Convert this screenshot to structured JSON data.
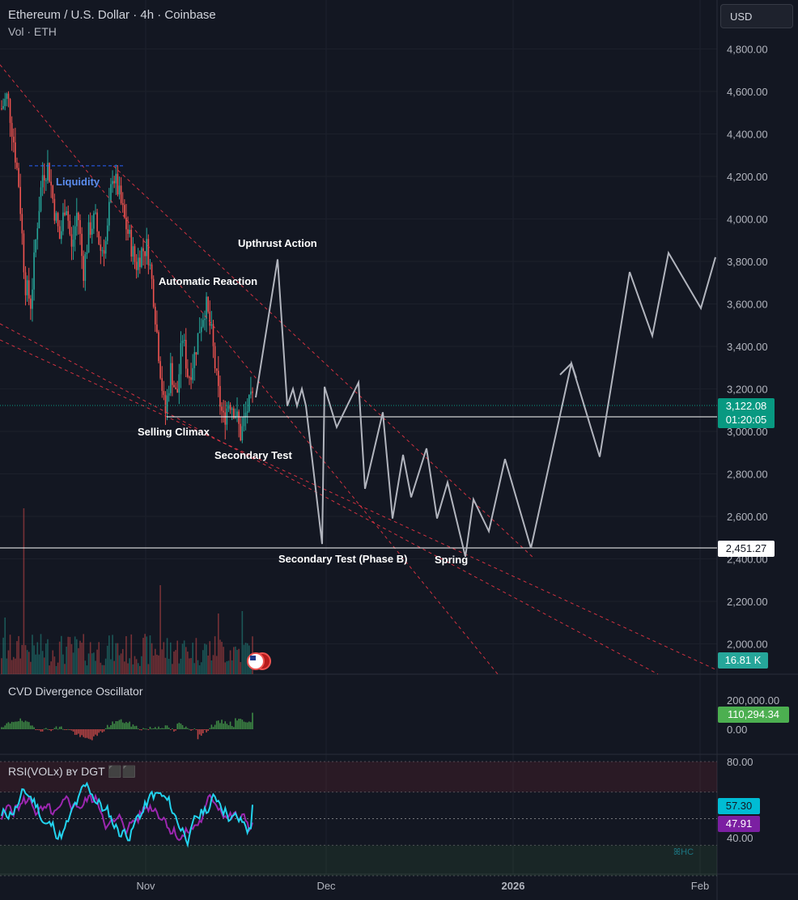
{
  "header": {
    "title": "Ethereum / U.S. Dollar · 4h · Coinbase",
    "volume_label": "Vol · ETH",
    "currency_button": "USD"
  },
  "panes": {
    "cvd_title": "CVD Divergence Oscillator",
    "rsi_title": "RSI(VOLx) ʙʏ DGT ⬛⬛"
  },
  "price_tags": {
    "current_price": "3,122.08",
    "countdown": "01:20:05",
    "support_level": "2,451.27",
    "volume": "16.81 K",
    "cvd_value": "110,294.34",
    "rsi_a": "57.30",
    "rsi_b": "47.91"
  },
  "colors": {
    "background": "#131722",
    "up": "#26a69a",
    "down": "#ef5350",
    "trendline": "#f23645",
    "projection": "#b2b5be",
    "rsi_cyan": "#22d3ee",
    "rsi_purple": "#9c27b0",
    "cvd_tag": "#4caf50",
    "rsi_b_tag": "#7b1fa2",
    "price_tag": "#089981"
  },
  "chart_data": {
    "type": "candlestick",
    "title": "Ethereum / U.S. Dollar · 4h · Coinbase",
    "y_axis": {
      "ticks": [
        "4,800.00",
        "4,600.00",
        "4,400.00",
        "4,200.00",
        "4,000.00",
        "3,800.00",
        "3,600.00",
        "3,400.00",
        "3,200.00",
        "3,000.00",
        "2,800.00",
        "2,600.00",
        "2,400.00",
        "2,200.00",
        "2,000.00"
      ],
      "range": [
        1850,
        4950
      ]
    },
    "x_axis": {
      "ticks": [
        "Nov",
        "Dec",
        "2026",
        "Feb"
      ]
    },
    "price_path": [
      [
        0,
        4520
      ],
      [
        1,
        4580
      ],
      [
        2,
        4380
      ],
      [
        3,
        4150
      ],
      [
        4,
        3700
      ],
      [
        5,
        3600
      ],
      [
        6,
        3950
      ],
      [
        7,
        4210
      ],
      [
        8,
        4250
      ],
      [
        9,
        4050
      ],
      [
        10,
        3900
      ],
      [
        11,
        4100
      ],
      [
        12,
        3850
      ],
      [
        13,
        4050
      ],
      [
        14,
        3750
      ],
      [
        15,
        3950
      ],
      [
        16,
        4000
      ],
      [
        17,
        3850
      ],
      [
        18,
        3900
      ],
      [
        19,
        4220
      ],
      [
        20,
        4130
      ],
      [
        21,
        4000
      ],
      [
        22,
        3900
      ],
      [
        23,
        3780
      ],
      [
        24,
        3850
      ],
      [
        25,
        3870
      ],
      [
        26,
        3650
      ],
      [
        27,
        3350
      ],
      [
        28,
        3070
      ],
      [
        29,
        3300
      ],
      [
        30,
        3150
      ],
      [
        31,
        3450
      ],
      [
        32,
        3250
      ],
      [
        33,
        3350
      ],
      [
        34,
        3500
      ],
      [
        35,
        3600
      ],
      [
        36,
        3450
      ],
      [
        37,
        3200
      ],
      [
        38,
        3050
      ],
      [
        39,
        3150
      ],
      [
        40,
        3100
      ],
      [
        41,
        2980
      ],
      [
        42,
        3100
      ],
      [
        43,
        3150
      ]
    ],
    "current_price": 3122.08,
    "support_level": 2451.27,
    "liquidity_level": 4250,
    "projection_path": [
      [
        316,
        3160
      ],
      [
        343,
        3810
      ],
      [
        355,
        3120
      ],
      [
        362,
        3200
      ],
      [
        367,
        3120
      ],
      [
        373,
        3200
      ],
      [
        378,
        3120
      ],
      [
        398,
        2470
      ],
      [
        401,
        3210
      ],
      [
        416,
        3020
      ],
      [
        443,
        3230
      ],
      [
        451,
        2730
      ],
      [
        473,
        3090
      ],
      [
        485,
        2590
      ],
      [
        498,
        2890
      ],
      [
        508,
        2690
      ],
      [
        527,
        2920
      ],
      [
        540,
        2590
      ],
      [
        553,
        2760
      ],
      [
        575,
        2410
      ],
      [
        585,
        2680
      ],
      [
        604,
        2530
      ],
      [
        624,
        2870
      ],
      [
        656,
        2450
      ],
      [
        706,
        3320
      ],
      [
        741,
        2880
      ],
      [
        778,
        3750
      ],
      [
        806,
        3450
      ],
      [
        826,
        3840
      ],
      [
        866,
        3580
      ],
      [
        884,
        3820
      ]
    ],
    "annotations": {
      "liquidity": "Liquidity",
      "upthrust": "Upthrust Action",
      "automatic_reaction": "Automatic Reaction",
      "selling_climax": "Selling Climax",
      "secondary_test": "Secondary Test",
      "secondary_test_b": "Secondary Test (Phase B)",
      "spring": "Spring"
    },
    "cvd_axis": {
      "ticks": [
        "200,000.00",
        "0.00"
      ]
    },
    "rsi_axis": {
      "ticks": [
        "80.00",
        "57.30",
        "40.00"
      ],
      "bands": [
        [
          64,
          80
        ],
        [
          20,
          36
        ]
      ]
    },
    "rsi_watermark": "ꕤHC"
  }
}
